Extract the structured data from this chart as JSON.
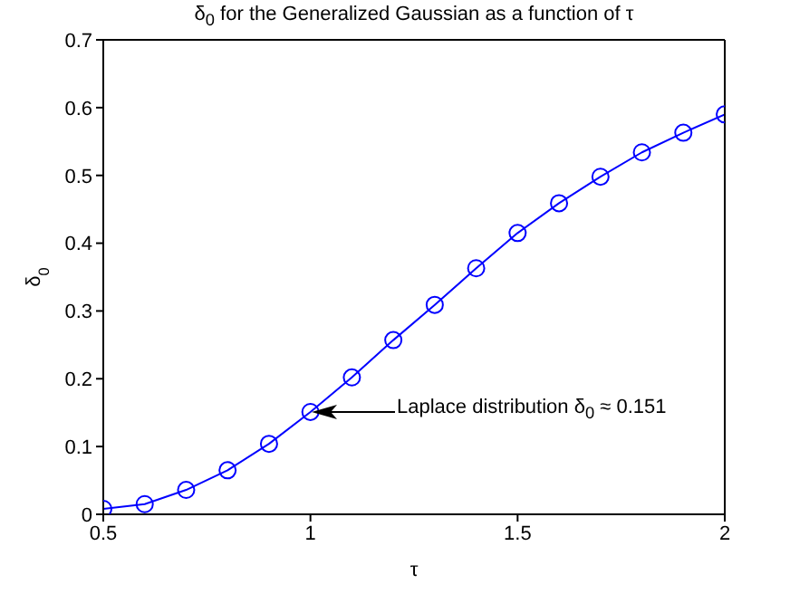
{
  "chart_data": {
    "type": "line",
    "title": "δ$_{0}$ for the Generalized Gaussian as a function of τ",
    "xlabel": "τ",
    "ylabel": "δ$_{0}$",
    "x": [
      0.5,
      0.6,
      0.7,
      0.8,
      0.9,
      1.0,
      1.1,
      1.2,
      1.3,
      1.4,
      1.5,
      1.6,
      1.7,
      1.8,
      1.9,
      2.0
    ],
    "series": [
      {
        "color": "#0000ff",
        "values": [
          0.008,
          0.015,
          0.036,
          0.065,
          0.104,
          0.151,
          0.202,
          0.257,
          0.309,
          0.363,
          0.415,
          0.459,
          0.498,
          0.534,
          0.563,
          0.59
        ]
      }
    ],
    "xlim": [
      0.5,
      2
    ],
    "xticks": [
      0.5,
      1,
      1.5,
      2
    ],
    "ylim": [
      0,
      0.7
    ],
    "yticks": [
      0,
      0.1,
      0.2,
      0.3,
      0.4,
      0.5,
      0.6,
      0.7
    ],
    "marker": "circle",
    "line_style": "solid",
    "grid": false,
    "legend": false,
    "annotations": [
      "Laplace distribution δ$_{0}$ ≈ 0.151"
    ]
  }
}
